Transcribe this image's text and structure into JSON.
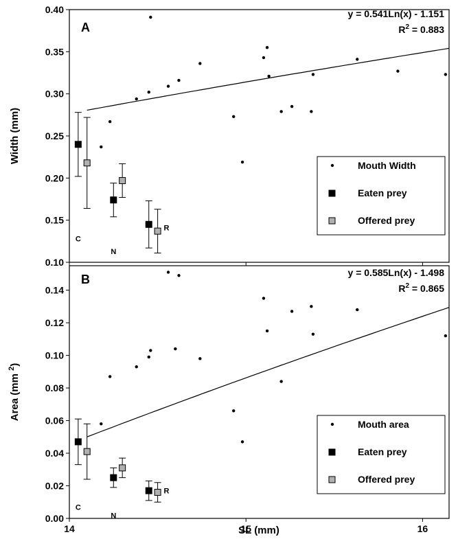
{
  "chart_data": [
    {
      "type": "scatter",
      "panel_label": "A",
      "xlabel": "",
      "ylabel": "Width (mm)",
      "xlim": [
        14,
        16.15
      ],
      "ylim": [
        0.1,
        0.4
      ],
      "x_ticks": [],
      "y_ticks": [
        "0.10",
        "0.15",
        "0.20",
        "0.25",
        "0.30",
        "0.35",
        "0.40"
      ],
      "y_tick_values": [
        0.1,
        0.15,
        0.2,
        0.25,
        0.3,
        0.35,
        0.4
      ],
      "grid": false,
      "legend_position": "bottom-right",
      "equation": "y = 0.541Ln(x) - 1.151",
      "r2_label": "R",
      "r2_sup": "2",
      "r2_value": " = 0.883",
      "trendline": {
        "a": 0.541,
        "b": -1.151,
        "x_range": [
          14.1,
          16.15
        ]
      },
      "series": [
        {
          "name": "Mouth Width",
          "marker": "dot",
          "x": [
            14.18,
            14.23,
            14.38,
            14.45,
            14.46,
            14.56,
            14.62,
            14.74,
            14.93,
            14.98,
            15.1,
            15.12,
            15.13,
            15.2,
            15.26,
            15.37,
            15.38,
            15.63,
            15.86,
            16.13
          ],
          "y": [
            0.237,
            0.267,
            0.294,
            0.302,
            0.391,
            0.309,
            0.316,
            0.336,
            0.273,
            0.219,
            0.343,
            0.355,
            0.321,
            0.279,
            0.285,
            0.279,
            0.323,
            0.341,
            0.327,
            0.323
          ]
        },
        {
          "name": "Eaten prey",
          "marker": "square",
          "color": "#000000",
          "x": [
            14.05,
            14.25,
            14.45
          ],
          "y": [
            0.24,
            0.174,
            0.145
          ],
          "err": [
            0.038,
            0.02,
            0.028
          ]
        },
        {
          "name": "Offered prey",
          "marker": "square",
          "color": "#b0b0b0",
          "x": [
            14.1,
            14.3,
            14.5
          ],
          "y": [
            0.218,
            0.197,
            0.137
          ],
          "err": [
            0.054,
            0.02,
            0.026
          ]
        }
      ],
      "group_labels": [
        {
          "text": "C",
          "x": 14.05,
          "y": 0.128
        },
        {
          "text": "N",
          "x": 14.25,
          "y": 0.113
        },
        {
          "text": "R",
          "x": 14.55,
          "y": 0.141
        }
      ]
    },
    {
      "type": "scatter",
      "panel_label": "B",
      "xlabel": "SL (mm)",
      "ylabel": "Area (mm 2)",
      "ylabel_main": "Area (mm ",
      "ylabel_sup": "2",
      "ylabel_close": ")",
      "xlim": [
        14,
        16.15
      ],
      "ylim": [
        0.0,
        0.155
      ],
      "x_ticks": [
        "14",
        "15",
        "16"
      ],
      "x_tick_values": [
        14,
        15,
        16
      ],
      "y_ticks": [
        "0.00",
        "0.02",
        "0.04",
        "0.06",
        "0.08",
        "0.10",
        "0.12",
        "0.14"
      ],
      "y_tick_values": [
        0.0,
        0.02,
        0.04,
        0.06,
        0.08,
        0.1,
        0.12,
        0.14
      ],
      "grid": false,
      "legend_position": "bottom-right",
      "equation": "y = 0.585Ln(x) - 1.498",
      "r2_label": "R",
      "r2_sup": "2",
      "r2_value": " = 0.865",
      "trendline": {
        "a": 0.585,
        "b": -1.498,
        "x_range": [
          14.1,
          16.15
        ]
      },
      "series": [
        {
          "name": "Mouth area",
          "marker": "dot",
          "x": [
            14.18,
            14.23,
            14.38,
            14.45,
            14.46,
            14.56,
            14.6,
            14.62,
            14.74,
            14.93,
            14.98,
            15.1,
            15.12,
            15.2,
            15.26,
            15.37,
            15.38,
            15.63,
            16.13
          ],
          "y": [
            0.058,
            0.087,
            0.093,
            0.099,
            0.103,
            0.151,
            0.104,
            0.149,
            0.098,
            0.066,
            0.047,
            0.135,
            0.115,
            0.084,
            0.127,
            0.13,
            0.113,
            0.128,
            0.112
          ]
        },
        {
          "name": "Eaten prey",
          "marker": "square",
          "color": "#000000",
          "x": [
            14.05,
            14.25,
            14.45
          ],
          "y": [
            0.047,
            0.025,
            0.017
          ],
          "err": [
            0.014,
            0.006,
            0.006
          ]
        },
        {
          "name": "Offered prey",
          "marker": "square",
          "color": "#b0b0b0",
          "x": [
            14.1,
            14.3,
            14.5
          ],
          "y": [
            0.041,
            0.031,
            0.016
          ],
          "err": [
            0.017,
            0.006,
            0.006
          ]
        }
      ],
      "group_labels": [
        {
          "text": "C",
          "x": 14.05,
          "y": 0.007
        },
        {
          "text": "N",
          "x": 14.25,
          "y": 0.002
        },
        {
          "text": "R",
          "x": 14.55,
          "y": 0.017
        }
      ]
    }
  ]
}
